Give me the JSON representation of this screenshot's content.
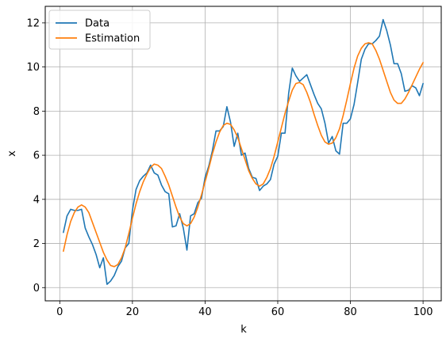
{
  "chart_data": {
    "type": "line",
    "title": "",
    "xlabel": "k",
    "ylabel": "x",
    "xlim": [
      -4,
      105
    ],
    "ylim": [
      -0.6,
      12.75
    ],
    "xticks": [
      0,
      20,
      40,
      60,
      80,
      100
    ],
    "yticks": [
      0,
      2,
      4,
      6,
      8,
      10,
      12
    ],
    "xtick_labels": [
      "0",
      "20",
      "40",
      "60",
      "80",
      "100"
    ],
    "ytick_labels": [
      "0",
      "2",
      "4",
      "6",
      "8",
      "10",
      "12"
    ],
    "grid": true,
    "legend_position": "top-left",
    "series": [
      {
        "name": "Data",
        "color": "#1f77b4",
        "x": [
          1,
          2,
          3,
          4,
          5,
          6,
          7,
          8,
          9,
          10,
          11,
          12,
          13,
          14,
          15,
          16,
          17,
          18,
          19,
          20,
          21,
          22,
          23,
          24,
          25,
          26,
          27,
          28,
          29,
          30,
          31,
          32,
          33,
          34,
          35,
          36,
          37,
          38,
          39,
          40,
          41,
          42,
          43,
          44,
          45,
          46,
          47,
          48,
          49,
          50,
          51,
          52,
          53,
          54,
          55,
          56,
          57,
          58,
          59,
          60,
          61,
          62,
          63,
          64,
          65,
          66,
          67,
          68,
          69,
          70,
          71,
          72,
          73,
          74,
          75,
          76,
          77,
          78,
          79,
          80,
          81,
          82,
          83,
          84,
          85,
          86,
          87,
          88,
          89,
          90,
          91,
          92,
          93,
          94,
          95,
          96,
          97,
          98,
          99,
          100
        ],
        "values": [
          2.5,
          3.25,
          3.55,
          3.5,
          3.5,
          3.55,
          2.7,
          2.3,
          1.95,
          1.5,
          0.9,
          1.35,
          0.15,
          0.3,
          0.55,
          0.95,
          1.2,
          1.8,
          2.0,
          3.5,
          4.45,
          4.85,
          5.05,
          5.2,
          5.55,
          5.2,
          5.1,
          4.65,
          4.35,
          4.25,
          2.75,
          2.8,
          3.35,
          2.7,
          1.7,
          3.25,
          3.35,
          3.85,
          4.05,
          5.0,
          5.5,
          6.2,
          7.1,
          7.1,
          7.3,
          8.2,
          7.5,
          6.4,
          7.0,
          6.0,
          6.1,
          5.4,
          5.0,
          4.95,
          4.4,
          4.6,
          4.7,
          4.9,
          5.6,
          5.95,
          7.0,
          7.0,
          8.8,
          9.95,
          9.6,
          9.35,
          9.5,
          9.65,
          9.2,
          8.75,
          8.35,
          8.1,
          7.45,
          6.55,
          6.85,
          6.2,
          6.05,
          7.45,
          7.45,
          7.65,
          8.3,
          9.3,
          10.35,
          10.8,
          11.05,
          11.05,
          11.2,
          11.4,
          12.15,
          11.65,
          11.0,
          10.15,
          10.15,
          9.7,
          8.9,
          8.95,
          9.15,
          9.05,
          8.7,
          9.25
        ]
      },
      {
        "name": "Estimation",
        "color": "#ff7f0e",
        "x": [
          1,
          2,
          3,
          4,
          5,
          6,
          7,
          8,
          9,
          10,
          11,
          12,
          13,
          14,
          15,
          16,
          17,
          18,
          19,
          20,
          21,
          22,
          23,
          24,
          25,
          26,
          27,
          28,
          29,
          30,
          31,
          32,
          33,
          34,
          35,
          36,
          37,
          38,
          39,
          40,
          41,
          42,
          43,
          44,
          45,
          46,
          47,
          48,
          49,
          50,
          51,
          52,
          53,
          54,
          55,
          56,
          57,
          58,
          59,
          60,
          61,
          62,
          63,
          64,
          65,
          66,
          67,
          68,
          69,
          70,
          71,
          72,
          73,
          74,
          75,
          76,
          77,
          78,
          79,
          80,
          81,
          82,
          83,
          84,
          85,
          86,
          87,
          88,
          89,
          90,
          91,
          92,
          93,
          94,
          95,
          96,
          97,
          98,
          99,
          100
        ],
        "values": [
          1.65,
          2.4,
          3.0,
          3.4,
          3.65,
          3.75,
          3.65,
          3.4,
          2.95,
          2.5,
          2.05,
          1.6,
          1.25,
          1.0,
          0.95,
          1.05,
          1.35,
          1.8,
          2.45,
          3.15,
          3.8,
          4.35,
          4.8,
          5.15,
          5.45,
          5.6,
          5.55,
          5.4,
          5.05,
          4.65,
          4.15,
          3.65,
          3.2,
          2.9,
          2.8,
          2.9,
          3.2,
          3.65,
          4.2,
          4.8,
          5.4,
          6.05,
          6.6,
          7.05,
          7.35,
          7.45,
          7.4,
          7.15,
          6.8,
          6.3,
          5.8,
          5.3,
          4.95,
          4.7,
          4.6,
          4.7,
          5.0,
          5.4,
          5.95,
          6.6,
          7.25,
          7.9,
          8.45,
          8.95,
          9.25,
          9.3,
          9.2,
          8.85,
          8.4,
          7.85,
          7.35,
          6.9,
          6.6,
          6.5,
          6.55,
          6.8,
          7.2,
          7.8,
          8.5,
          9.25,
          9.95,
          10.5,
          10.85,
          11.05,
          11.1,
          11.05,
          10.75,
          10.35,
          9.85,
          9.35,
          8.85,
          8.5,
          8.35,
          8.35,
          8.55,
          8.85,
          9.2,
          9.55,
          9.9,
          10.2
        ]
      }
    ]
  }
}
